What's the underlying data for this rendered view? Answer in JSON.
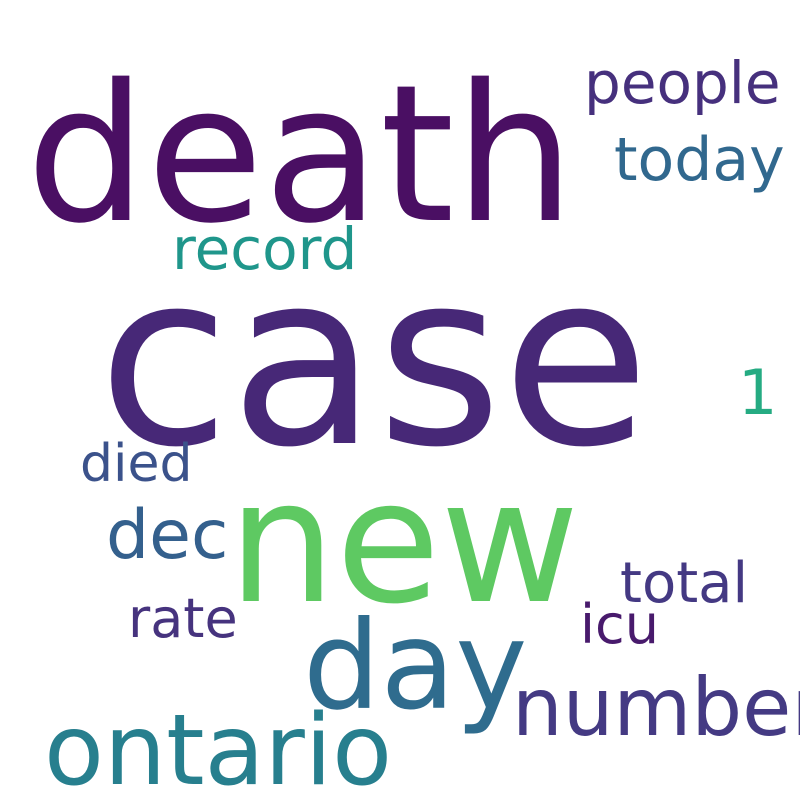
{
  "words": {
    "death": {
      "text": "death",
      "color": "#4a0f63"
    },
    "case": {
      "text": "case",
      "color": "#472877"
    },
    "new": {
      "text": "new",
      "color": "#5ec962"
    },
    "day": {
      "text": "day",
      "color": "#2f6c8e"
    },
    "ontario": {
      "text": "ontario",
      "color": "#277f8e"
    },
    "number": {
      "text": "number",
      "color": "#443a83"
    },
    "people": {
      "text": "people",
      "color": "#46307d"
    },
    "today": {
      "text": "today",
      "color": "#31688e"
    },
    "record": {
      "text": "record",
      "color": "#1f968b"
    },
    "one": {
      "text": "1",
      "color": "#25ab82"
    },
    "died": {
      "text": "died",
      "color": "#3b528b"
    },
    "dec": {
      "text": "dec",
      "color": "#34608d"
    },
    "total": {
      "text": "total",
      "color": "#443983"
    },
    "icu": {
      "text": "icu",
      "color": "#481a6c"
    },
    "rate": {
      "text": "rate",
      "color": "#46337e"
    }
  }
}
